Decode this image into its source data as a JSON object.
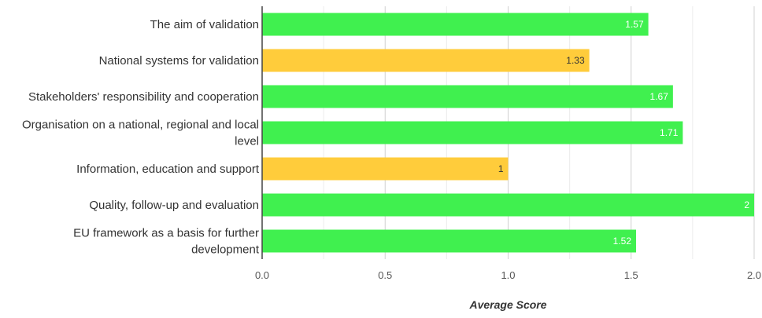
{
  "chart_data": {
    "type": "bar",
    "orientation": "horizontal",
    "categories": [
      "The aim of validation",
      "National systems for validation",
      "Stakeholders' responsibility and cooperation",
      "Organisation on a national, regional and local level",
      "Information, education and support",
      "Quality, follow-up and evaluation",
      "EU framework as a basis for further development"
    ],
    "values": [
      1.57,
      1.33,
      1.67,
      1.71,
      1,
      2,
      1.52
    ],
    "value_labels": [
      "1.57",
      "1.33",
      "1.67",
      "1.71",
      "1",
      "2",
      "1.52"
    ],
    "bar_colors": [
      "#40f04f",
      "#ffcc3b",
      "#40f04f",
      "#40f04f",
      "#ffcc3b",
      "#40f04f",
      "#40f04f"
    ],
    "value_label_colors": [
      "#ffffff",
      "#333333",
      "#ffffff",
      "#ffffff",
      "#333333",
      "#ffffff",
      "#ffffff"
    ],
    "xlabel": "Average Score",
    "ylabel": "",
    "xlim": [
      0,
      2
    ],
    "xticks": [
      "0.0",
      "0.5",
      "1.0",
      "1.5",
      "2.0"
    ],
    "xtick_values": [
      0,
      0.5,
      1,
      1.5,
      2
    ],
    "grid": true,
    "legend": "none"
  }
}
